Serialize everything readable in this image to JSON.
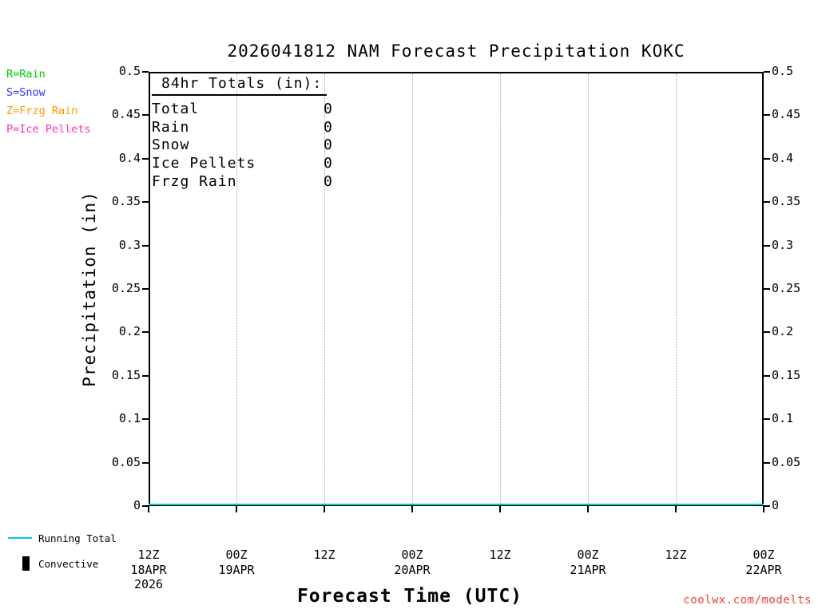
{
  "title": "2026041812 NAM Forecast Precipitation KOKC",
  "legend": {
    "items": [
      {
        "label": "R=Rain",
        "color": "#00cc00"
      },
      {
        "label": "S=Snow",
        "color": "#3333ff"
      },
      {
        "label": "Z=Frzg Rain",
        "color": "#ff9900"
      },
      {
        "label": "P=Ice Pellets",
        "color": "#ff33aa"
      }
    ]
  },
  "totals": {
    "header": "84hr Totals (in):",
    "rows": [
      {
        "label": "Total",
        "value": "0"
      },
      {
        "label": "Rain",
        "value": "0"
      },
      {
        "label": "Snow",
        "value": "0"
      },
      {
        "label": "Ice Pellets",
        "value": "0"
      },
      {
        "label": "Frzg Rain",
        "value": "0"
      }
    ]
  },
  "axes": {
    "ylabel": "Precipitation (in)",
    "xlabel": "Forecast Time (UTC)"
  },
  "bottom_legend": {
    "running_total": {
      "label": "Running Total",
      "color": "#00cccc"
    },
    "convective": {
      "label": "Convective",
      "color": "#000000"
    }
  },
  "footer": {
    "link": "coolwx.com/modelts",
    "color": "#ee4433"
  },
  "chart_data": {
    "type": "line",
    "title": "2026041812 NAM Forecast Precipitation KOKC",
    "xlabel": "Forecast Time (UTC)",
    "ylabel": "Precipitation (in)",
    "ylim": [
      0,
      0.5
    ],
    "grid": "vertical-dotted",
    "legend_position": "outside-left",
    "y_ticks": [
      "0",
      "0.05",
      "0.1",
      "0.15",
      "0.2",
      "0.25",
      "0.3",
      "0.35",
      "0.4",
      "0.45",
      "0.5"
    ],
    "x_ticks": [
      {
        "label": "12Z",
        "date": "18APR",
        "year": "2026"
      },
      {
        "label": "00Z",
        "date": "19APR"
      },
      {
        "label": "12Z"
      },
      {
        "label": "00Z",
        "date": "20APR"
      },
      {
        "label": "12Z"
      },
      {
        "label": "00Z",
        "date": "21APR"
      },
      {
        "label": "12Z"
      },
      {
        "label": "00Z",
        "date": "22APR"
      }
    ],
    "series": [
      {
        "name": "Running Total",
        "style": "line",
        "color": "#00cccc",
        "values": [
          0,
          0,
          0,
          0,
          0,
          0,
          0,
          0
        ]
      },
      {
        "name": "Convective",
        "style": "bar",
        "color": "#000000",
        "values": [
          0,
          0,
          0,
          0,
          0,
          0,
          0,
          0
        ]
      }
    ],
    "totals_84hr_in": {
      "Total": 0,
      "Rain": 0,
      "Snow": 0,
      "Ice Pellets": 0,
      "Frzg Rain": 0
    }
  }
}
